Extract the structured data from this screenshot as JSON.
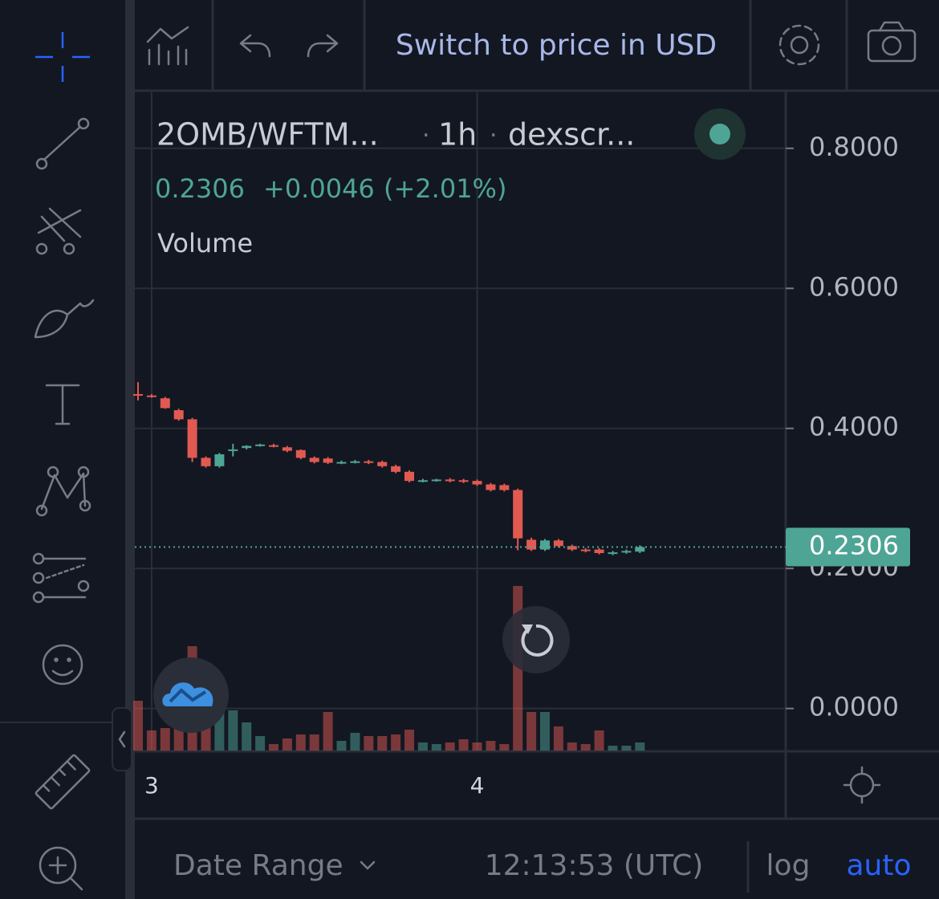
{
  "ui": {
    "switch_button": "Switch to price in USD",
    "date_range": "Date Range",
    "clock": "12:13:53 (UTC)",
    "log": "log",
    "auto": "auto"
  },
  "chart_data": {
    "type": "candlestick",
    "title": "2OMB/WFTM...",
    "interval": "1h",
    "source": "dexscr...",
    "last": "0.2306",
    "change": "+0.0046",
    "change_percent": "(+2.01%)",
    "volume_label": "Volume",
    "categories": [
      null,
      "3",
      null,
      null,
      null,
      null,
      null,
      null,
      null,
      null,
      null,
      null,
      null,
      null,
      null,
      null,
      null,
      null,
      null,
      null,
      null,
      null,
      null,
      null,
      null,
      "4",
      null,
      null,
      null,
      null,
      null,
      null,
      null,
      null,
      null,
      null,
      null,
      null
    ],
    "open": [
      0.449,
      0.447,
      0.443,
      0.426,
      0.413,
      0.358,
      0.346,
      0.368,
      0.372,
      0.376,
      0.376,
      0.373,
      0.369,
      0.358,
      0.357,
      0.351,
      0.352,
      0.353,
      0.352,
      0.346,
      0.338,
      0.325,
      0.326,
      0.327,
      0.326,
      0.325,
      0.32,
      0.319,
      0.312,
      0.241,
      0.227,
      0.24,
      0.232,
      0.227,
      0.227,
      0.221,
      0.223,
      0.224
    ],
    "high": [
      0.466,
      0.449,
      0.445,
      0.428,
      0.415,
      0.36,
      0.365,
      0.378,
      0.376,
      0.378,
      0.378,
      0.375,
      0.37,
      0.36,
      0.359,
      0.354,
      0.355,
      0.355,
      0.354,
      0.348,
      0.34,
      0.328,
      0.328,
      0.329,
      0.328,
      0.327,
      0.322,
      0.321,
      0.314,
      0.244,
      0.242,
      0.242,
      0.234,
      0.229,
      0.229,
      0.225,
      0.227,
      0.233
    ],
    "low": [
      0.44,
      0.444,
      0.428,
      0.411,
      0.352,
      0.344,
      0.344,
      0.36,
      0.37,
      0.374,
      0.373,
      0.366,
      0.356,
      0.35,
      0.349,
      0.349,
      0.35,
      0.349,
      0.344,
      0.336,
      0.323,
      0.323,
      0.324,
      0.323,
      0.322,
      0.318,
      0.31,
      0.31,
      0.226,
      0.225,
      0.225,
      0.23,
      0.225,
      0.223,
      0.22,
      0.219,
      0.221,
      0.222
    ],
    "close": [
      0.448,
      0.446,
      0.429,
      0.413,
      0.358,
      0.346,
      0.363,
      0.37,
      0.375,
      0.377,
      0.375,
      0.368,
      0.358,
      0.352,
      0.351,
      0.352,
      0.353,
      0.351,
      0.346,
      0.338,
      0.325,
      0.326,
      0.327,
      0.325,
      0.324,
      0.32,
      0.312,
      0.312,
      0.243,
      0.227,
      0.24,
      0.232,
      0.227,
      0.225,
      0.222,
      0.223,
      0.225,
      0.2306
    ],
    "volume": [
      62,
      25,
      28,
      35,
      130,
      55,
      55,
      50,
      35,
      18,
      8,
      15,
      20,
      20,
      48,
      12,
      22,
      18,
      18,
      20,
      26,
      10,
      8,
      10,
      14,
      10,
      12,
      8,
      205,
      48,
      48,
      30,
      10,
      8,
      25,
      6,
      6,
      10
    ],
    "up_color": "#4fa595",
    "down_color": "#e15a52",
    "ylim": [
      -0.06,
      0.88
    ],
    "yticks": [
      {
        "value": 0,
        "label": "0.0000"
      },
      {
        "value": 0.2,
        "label": "0.2000"
      },
      {
        "value": 0.4,
        "label": "0.4000"
      },
      {
        "value": 0.6,
        "label": "0.6000"
      },
      {
        "value": 0.8,
        "label": "0.8000"
      }
    ],
    "last_price": {
      "value": 0.2306,
      "label": "0.2306"
    },
    "grid": true
  }
}
